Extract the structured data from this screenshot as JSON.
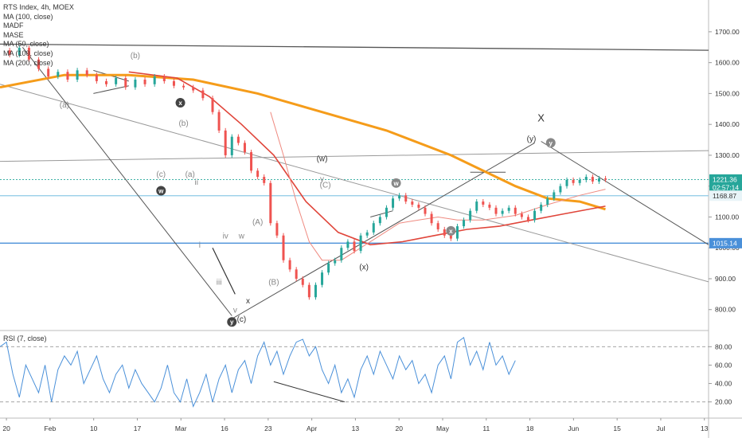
{
  "chart_data": {
    "type": "line",
    "title": "RTS Index, 4h, MOEX",
    "indicators": [
      "MA (100, close)",
      "MADF",
      "MASE",
      "MA (50, close)",
      "MA (100, close)",
      "MA (200, close)"
    ],
    "price_axis": {
      "ticks": [
        1700,
        1600,
        1500,
        1400,
        1300,
        1200,
        1100,
        1000,
        900,
        800
      ],
      "tick_labels": [
        "1700.00",
        "1600.00",
        "1500.00",
        "1400.00",
        "1300.00",
        "1200.00",
        "1100.00",
        "1000.00",
        "900.00",
        "800.00"
      ],
      "range": [
        740,
        1790
      ]
    },
    "price_tags": [
      {
        "label": "1221.36",
        "value": 1221.36,
        "color": "#26a69a"
      },
      {
        "label": "02:57:14",
        "value": 1195,
        "color": "#26a69a"
      },
      {
        "label": "1168.87",
        "value": 1168.87,
        "color": "#e8f4f8"
      },
      {
        "label": "1015.14",
        "value": 1015.14,
        "color": "#4a90d9"
      }
    ],
    "time_axis": {
      "labels": [
        "20",
        "Feb",
        "10",
        "17",
        "Mar",
        "16",
        "23",
        "Apr",
        "13",
        "20",
        "May",
        "11",
        "18",
        "Jun",
        "15",
        "Jul",
        "13"
      ],
      "range": [
        0,
        220
      ]
    },
    "price_series": [
      [
        0,
        1640
      ],
      [
        3,
        1625
      ],
      [
        6,
        1648
      ],
      [
        9,
        1610
      ],
      [
        12,
        1580
      ],
      [
        15,
        1555
      ],
      [
        18,
        1570
      ],
      [
        21,
        1545
      ],
      [
        24,
        1575
      ],
      [
        27,
        1560
      ],
      [
        30,
        1540
      ],
      [
        33,
        1530
      ],
      [
        36,
        1550
      ],
      [
        39,
        1520
      ],
      [
        42,
        1545
      ],
      [
        45,
        1530
      ],
      [
        48,
        1555
      ],
      [
        51,
        1540
      ],
      [
        54,
        1525
      ],
      [
        57,
        1520
      ],
      [
        60,
        1510
      ],
      [
        63,
        1485
      ],
      [
        66,
        1440
      ],
      [
        68,
        1380
      ],
      [
        70,
        1300
      ],
      [
        72,
        1360
      ],
      [
        74,
        1340
      ],
      [
        76,
        1310
      ],
      [
        78,
        1250
      ],
      [
        80,
        1230
      ],
      [
        82,
        1210
      ],
      [
        84,
        1080
      ],
      [
        86,
        1040
      ],
      [
        88,
        960
      ],
      [
        90,
        930
      ],
      [
        92,
        900
      ],
      [
        94,
        880
      ],
      [
        96,
        840
      ],
      [
        98,
        880
      ],
      [
        100,
        920
      ],
      [
        102,
        950
      ],
      [
        104,
        960
      ],
      [
        106,
        1000
      ],
      [
        108,
        1020
      ],
      [
        110,
        990
      ],
      [
        112,
        1040
      ],
      [
        114,
        1050
      ],
      [
        116,
        1080
      ],
      [
        118,
        1100
      ],
      [
        120,
        1130
      ],
      [
        122,
        1160
      ],
      [
        124,
        1170
      ],
      [
        126,
        1150
      ],
      [
        128,
        1140
      ],
      [
        130,
        1130
      ],
      [
        132,
        1110
      ],
      [
        134,
        1080
      ],
      [
        136,
        1060
      ],
      [
        138,
        1040
      ],
      [
        140,
        1030
      ],
      [
        142,
        1070
      ],
      [
        144,
        1090
      ],
      [
        146,
        1120
      ],
      [
        148,
        1150
      ],
      [
        150,
        1140
      ],
      [
        152,
        1130
      ],
      [
        154,
        1110
      ],
      [
        156,
        1120
      ],
      [
        158,
        1130
      ],
      [
        160,
        1110
      ],
      [
        162,
        1100
      ],
      [
        164,
        1090
      ],
      [
        166,
        1120
      ],
      [
        168,
        1140
      ],
      [
        170,
        1160
      ],
      [
        172,
        1180
      ],
      [
        174,
        1200
      ],
      [
        176,
        1220
      ],
      [
        178,
        1210
      ],
      [
        180,
        1220
      ],
      [
        182,
        1230
      ],
      [
        184,
        1215
      ],
      [
        186,
        1225
      ],
      [
        188,
        1221
      ]
    ],
    "ma_orange": [
      [
        0,
        1520
      ],
      [
        20,
        1560
      ],
      [
        40,
        1560
      ],
      [
        60,
        1545
      ],
      [
        80,
        1500
      ],
      [
        100,
        1440
      ],
      [
        120,
        1380
      ],
      [
        140,
        1300
      ],
      [
        160,
        1200
      ],
      [
        170,
        1160
      ],
      [
        180,
        1150
      ],
      [
        188,
        1125
      ]
    ],
    "ma_red": [
      [
        40,
        1570
      ],
      [
        55,
        1550
      ],
      [
        65,
        1490
      ],
      [
        75,
        1400
      ],
      [
        85,
        1300
      ],
      [
        95,
        1150
      ],
      [
        105,
        1050
      ],
      [
        115,
        1010
      ],
      [
        125,
        1020
      ],
      [
        135,
        1040
      ],
      [
        145,
        1060
      ],
      [
        155,
        1070
      ],
      [
        165,
        1090
      ],
      [
        175,
        1110
      ],
      [
        188,
        1135
      ]
    ],
    "ma_thin_red": [
      [
        84,
        1440
      ],
      [
        88,
        1300
      ],
      [
        92,
        1150
      ],
      [
        96,
        1020
      ],
      [
        100,
        960
      ],
      [
        106,
        960
      ],
      [
        112,
        1000
      ],
      [
        118,
        1040
      ],
      [
        124,
        1080
      ],
      [
        130,
        1090
      ],
      [
        136,
        1100
      ],
      [
        142,
        1090
      ],
      [
        150,
        1090
      ],
      [
        160,
        1105
      ],
      [
        170,
        1140
      ],
      [
        180,
        1170
      ],
      [
        188,
        1190
      ]
    ],
    "wave_labels": [
      {
        "text": "(b)",
        "x": 42,
        "y": 1615,
        "style": "gray"
      },
      {
        "text": "(a)",
        "x": 20,
        "y": 1455,
        "style": "gray"
      },
      {
        "text": "(b)",
        "x": 57,
        "y": 1395,
        "style": "gray"
      },
      {
        "text": "(c)",
        "x": 50,
        "y": 1230,
        "style": "gray"
      },
      {
        "text": "(a)",
        "x": 59,
        "y": 1230,
        "style": "gray"
      },
      {
        "text": "ii",
        "x": 61,
        "y": 1205,
        "style": "gray"
      },
      {
        "text": "(w)",
        "x": 100,
        "y": 1280,
        "style": "dark"
      },
      {
        "text": "y",
        "x": 100,
        "y": 1215,
        "style": "gray"
      },
      {
        "text": "(C)",
        "x": 101,
        "y": 1195,
        "style": "gray"
      },
      {
        "text": "(A)",
        "x": 80,
        "y": 1075,
        "style": "gray"
      },
      {
        "text": "iv",
        "x": 70,
        "y": 1030,
        "style": "gray"
      },
      {
        "text": "w",
        "x": 75,
        "y": 1030,
        "style": "gray"
      },
      {
        "text": "i",
        "x": 62,
        "y": 1000,
        "style": "gray"
      },
      {
        "text": "iii",
        "x": 68,
        "y": 880,
        "style": "gray"
      },
      {
        "text": "(B)",
        "x": 85,
        "y": 880,
        "style": "gray"
      },
      {
        "text": "x",
        "x": 77,
        "y": 820,
        "style": "dark"
      },
      {
        "text": "v",
        "x": 73,
        "y": 790,
        "style": "gray"
      },
      {
        "text": "(c)",
        "x": 75,
        "y": 760,
        "style": "dark"
      },
      {
        "text": "(x)",
        "x": 113,
        "y": 930,
        "style": "dark"
      },
      {
        "text": "X",
        "x": 168,
        "y": 1410,
        "style": "dark"
      },
      {
        "text": "(y)",
        "x": 165,
        "y": 1345,
        "style": "dark"
      }
    ],
    "circle_labels": [
      {
        "text": "x",
        "x": 56,
        "y": 1470,
        "style": "dark"
      },
      {
        "text": "w",
        "x": 50,
        "y": 1185,
        "style": "dark"
      },
      {
        "text": "w",
        "x": 123,
        "y": 1210,
        "style": "gray"
      },
      {
        "text": "x",
        "x": 140,
        "y": 1055,
        "style": "gray"
      },
      {
        "text": "y",
        "x": 171,
        "y": 1340,
        "style": "gray"
      },
      {
        "text": "y",
        "x": 72,
        "y": 760,
        "style": "dark"
      }
    ],
    "rsi": {
      "label": "RSI (7, close)",
      "ticks": [
        80,
        60,
        40,
        20
      ],
      "tick_labels": [
        "80.00",
        "60.00",
        "40.00",
        "20.00"
      ],
      "range": [
        5,
        95
      ],
      "values": [
        [
          0,
          80
        ],
        [
          2,
          85
        ],
        [
          4,
          50
        ],
        [
          6,
          25
        ],
        [
          8,
          60
        ],
        [
          10,
          45
        ],
        [
          12,
          30
        ],
        [
          14,
          60
        ],
        [
          16,
          20
        ],
        [
          18,
          55
        ],
        [
          20,
          70
        ],
        [
          22,
          60
        ],
        [
          24,
          75
        ],
        [
          26,
          40
        ],
        [
          28,
          55
        ],
        [
          30,
          70
        ],
        [
          32,
          45
        ],
        [
          34,
          30
        ],
        [
          36,
          50
        ],
        [
          38,
          60
        ],
        [
          40,
          35
        ],
        [
          42,
          55
        ],
        [
          44,
          40
        ],
        [
          46,
          30
        ],
        [
          48,
          20
        ],
        [
          50,
          35
        ],
        [
          52,
          60
        ],
        [
          54,
          30
        ],
        [
          56,
          20
        ],
        [
          58,
          45
        ],
        [
          60,
          15
        ],
        [
          62,
          30
        ],
        [
          64,
          50
        ],
        [
          66,
          20
        ],
        [
          68,
          45
        ],
        [
          70,
          60
        ],
        [
          72,
          30
        ],
        [
          74,
          55
        ],
        [
          76,
          65
        ],
        [
          78,
          40
        ],
        [
          80,
          70
        ],
        [
          82,
          85
        ],
        [
          84,
          60
        ],
        [
          86,
          75
        ],
        [
          88,
          50
        ],
        [
          90,
          70
        ],
        [
          92,
          85
        ],
        [
          94,
          88
        ],
        [
          96,
          70
        ],
        [
          98,
          80
        ],
        [
          100,
          55
        ],
        [
          102,
          40
        ],
        [
          104,
          60
        ],
        [
          106,
          30
        ],
        [
          108,
          45
        ],
        [
          110,
          25
        ],
        [
          112,
          55
        ],
        [
          114,
          70
        ],
        [
          116,
          50
        ],
        [
          118,
          75
        ],
        [
          120,
          60
        ],
        [
          122,
          45
        ],
        [
          124,
          70
        ],
        [
          126,
          55
        ],
        [
          128,
          65
        ],
        [
          130,
          40
        ],
        [
          132,
          50
        ],
        [
          134,
          30
        ],
        [
          136,
          60
        ],
        [
          138,
          70
        ],
        [
          140,
          45
        ],
        [
          142,
          85
        ],
        [
          144,
          90
        ],
        [
          146,
          60
        ],
        [
          148,
          75
        ],
        [
          150,
          55
        ],
        [
          152,
          85
        ],
        [
          154,
          60
        ],
        [
          156,
          70
        ],
        [
          158,
          50
        ],
        [
          160,
          65
        ]
      ],
      "divergence": [
        [
          85,
          42
        ],
        [
          107,
          20
        ]
      ]
    }
  }
}
